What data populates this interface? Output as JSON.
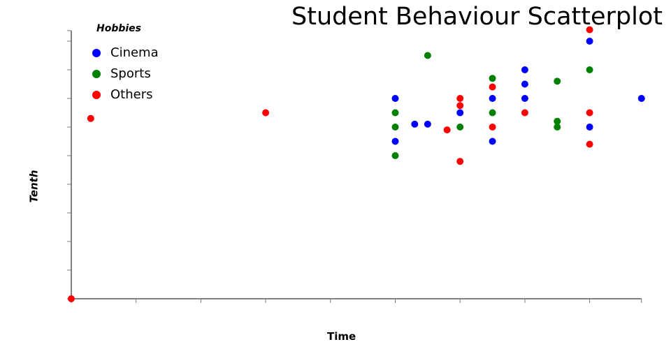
{
  "chart_data": {
    "type": "scatter",
    "title": "Student Behaviour Scatterplot",
    "xlabel": "Time",
    "ylabel": "Tenth",
    "legend_title": "Hobbies",
    "legend_placement": "top-left",
    "grid": false,
    "xlim": [
      0,
      8.8
    ],
    "ylim": [
      0,
      9.37
    ],
    "x_ticks": [
      0,
      1,
      2,
      3,
      4,
      5,
      6,
      7,
      8
    ],
    "y_ticks": [
      0,
      1,
      2,
      3,
      4,
      5,
      6,
      7,
      8,
      9
    ],
    "series": [
      {
        "name": "Cinema",
        "color": "#0000ff",
        "points": [
          [
            5,
            7
          ],
          [
            5,
            5.5
          ],
          [
            5.3,
            6.1
          ],
          [
            5.5,
            6.1
          ],
          [
            6,
            6.5
          ],
          [
            6.5,
            7
          ],
          [
            6.5,
            5.5
          ],
          [
            7,
            8
          ],
          [
            7,
            7.5
          ],
          [
            7,
            7
          ],
          [
            8,
            9
          ],
          [
            8,
            6
          ],
          [
            8.8,
            7
          ]
        ]
      },
      {
        "name": "Sports",
        "color": "#008000",
        "points": [
          [
            5,
            6.5
          ],
          [
            5,
            6
          ],
          [
            5,
            5
          ],
          [
            5.5,
            8.5
          ],
          [
            6,
            6
          ],
          [
            6.5,
            7.7
          ],
          [
            6.5,
            6.5
          ],
          [
            7.5,
            7.6
          ],
          [
            7.5,
            6.2
          ],
          [
            7.5,
            6
          ],
          [
            8,
            8
          ]
        ]
      },
      {
        "name": "Others",
        "color": "#ff0000",
        "points": [
          [
            0,
            0
          ],
          [
            0.3,
            6.3
          ],
          [
            3,
            6.5
          ],
          [
            5.8,
            5.9
          ],
          [
            6,
            7
          ],
          [
            6,
            6.75
          ],
          [
            6,
            4.8
          ],
          [
            6.5,
            7.4
          ],
          [
            6.5,
            6
          ],
          [
            7,
            6.5
          ],
          [
            8,
            9.4
          ],
          [
            8,
            6.5
          ],
          [
            8,
            5.4
          ]
        ]
      }
    ]
  }
}
